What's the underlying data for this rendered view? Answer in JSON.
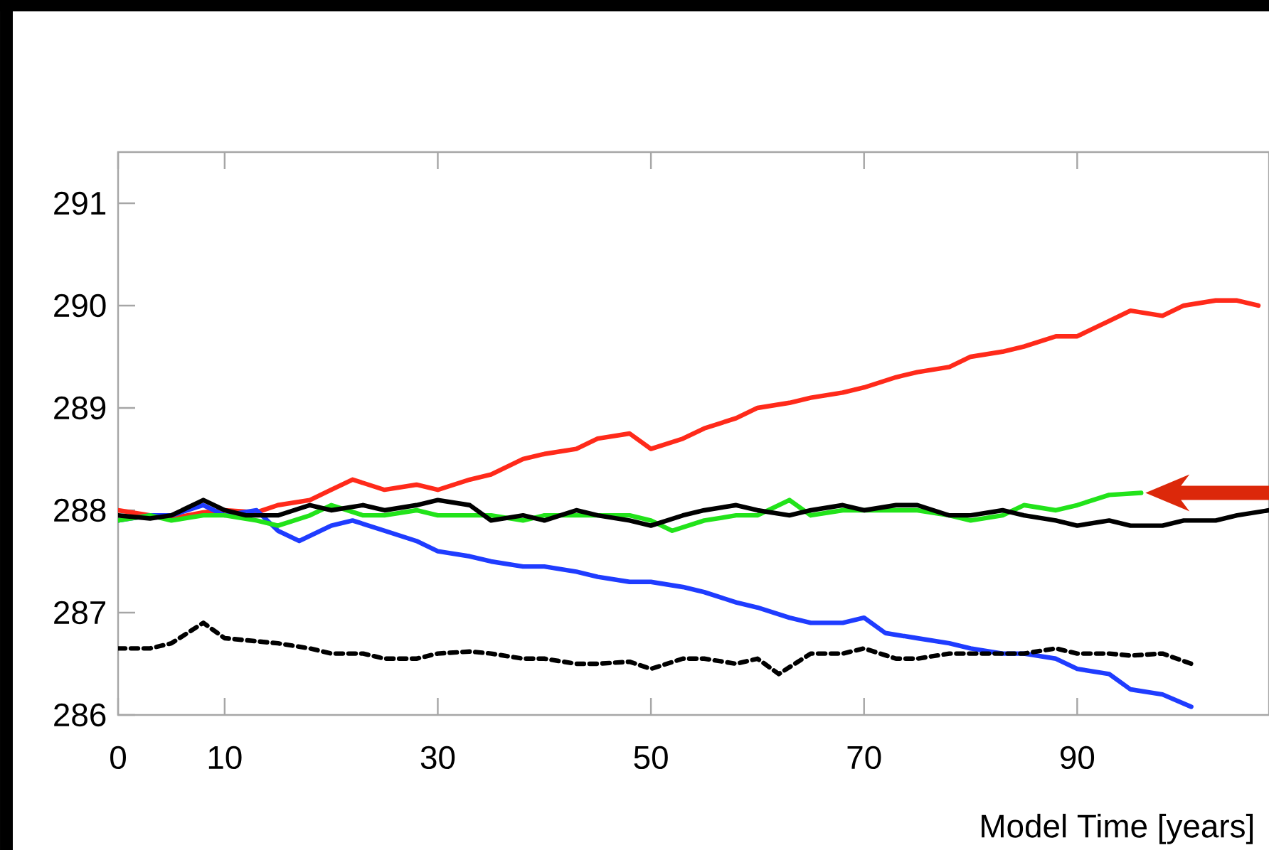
{
  "chart_data": {
    "type": "line",
    "xlabel": "Model Time [years]",
    "xlim": [
      0,
      108
    ],
    "xticks": [
      0,
      10,
      30,
      50,
      70,
      90
    ],
    "ylim": [
      286,
      291.5
    ],
    "yticks": [
      286,
      287,
      288,
      289,
      290,
      291
    ],
    "marker": "none",
    "series": [
      {
        "color": "#ff2a1a",
        "line_style": "solid",
        "x": [
          0,
          3,
          5,
          8,
          10,
          13,
          15,
          18,
          20,
          22,
          25,
          28,
          30,
          33,
          35,
          38,
          40,
          43,
          45,
          48,
          50,
          53,
          55,
          58,
          60,
          63,
          65,
          68,
          70,
          73,
          75,
          78,
          80,
          83,
          85,
          88,
          90,
          93,
          95,
          98,
          100,
          103,
          105,
          107
        ],
        "values": [
          288.0,
          287.95,
          287.92,
          287.98,
          288.0,
          287.98,
          288.05,
          288.1,
          288.2,
          288.3,
          288.2,
          288.25,
          288.2,
          288.3,
          288.35,
          288.5,
          288.55,
          288.6,
          288.7,
          288.75,
          288.6,
          288.7,
          288.8,
          288.9,
          289.0,
          289.05,
          289.1,
          289.15,
          289.2,
          289.3,
          289.35,
          289.4,
          289.5,
          289.55,
          289.6,
          289.7,
          289.7,
          289.85,
          289.95,
          289.9,
          290.0,
          290.05,
          290.05,
          290.0
        ]
      },
      {
        "color": "#1f3cff",
        "line_style": "solid",
        "x": [
          0,
          3,
          5,
          8,
          10,
          13,
          15,
          17,
          20,
          22,
          25,
          28,
          30,
          33,
          35,
          38,
          40,
          43,
          45,
          48,
          50,
          53,
          55,
          58,
          60,
          63,
          65,
          68,
          70,
          72,
          75,
          78,
          80,
          83,
          85,
          88,
          90,
          93,
          95,
          98,
          100.7
        ],
        "values": [
          287.9,
          287.95,
          287.95,
          288.05,
          287.95,
          288.0,
          287.8,
          287.7,
          287.85,
          287.9,
          287.8,
          287.7,
          287.6,
          287.55,
          287.5,
          287.45,
          287.45,
          287.4,
          287.35,
          287.3,
          287.3,
          287.25,
          287.2,
          287.1,
          287.05,
          286.95,
          286.9,
          286.9,
          286.95,
          286.8,
          286.75,
          286.7,
          286.65,
          286.6,
          286.6,
          286.55,
          286.45,
          286.4,
          286.25,
          286.2,
          286.08
        ]
      },
      {
        "color": "#22e31a",
        "line_style": "solid",
        "x": [
          0,
          3,
          5,
          8,
          10,
          13,
          15,
          18,
          20,
          23,
          25,
          28,
          30,
          33,
          35,
          38,
          40,
          43,
          45,
          48,
          50,
          52,
          55,
          58,
          60,
          63,
          65,
          68,
          70,
          73,
          75,
          78,
          80,
          83,
          85,
          88,
          90,
          93,
          96
        ],
        "values": [
          287.9,
          287.95,
          287.9,
          287.95,
          287.95,
          287.9,
          287.85,
          287.95,
          288.05,
          287.95,
          287.95,
          288.0,
          287.95,
          287.95,
          287.95,
          287.9,
          287.95,
          287.95,
          287.95,
          287.95,
          287.9,
          287.8,
          287.9,
          287.95,
          287.95,
          288.1,
          287.95,
          288.0,
          288.0,
          288.0,
          288.0,
          287.95,
          287.9,
          287.95,
          288.05,
          288.0,
          288.05,
          288.15,
          288.17
        ]
      },
      {
        "color": "#000000",
        "line_style": "solid",
        "x": [
          0,
          3,
          5,
          8,
          10,
          12,
          15,
          18,
          20,
          23,
          25,
          28,
          30,
          33,
          35,
          38,
          40,
          43,
          45,
          48,
          50,
          53,
          55,
          58,
          60,
          63,
          65,
          68,
          70,
          73,
          75,
          78,
          80,
          83,
          85,
          88,
          90,
          93,
          95,
          98,
          100,
          103,
          105,
          108
        ],
        "values": [
          287.95,
          287.92,
          287.95,
          288.1,
          288.0,
          287.95,
          287.95,
          288.05,
          288.0,
          288.05,
          288.0,
          288.05,
          288.1,
          288.05,
          287.9,
          287.95,
          287.9,
          288.0,
          287.95,
          287.9,
          287.85,
          287.95,
          288.0,
          288.05,
          288.0,
          287.95,
          288.0,
          288.05,
          288.0,
          288.05,
          288.05,
          287.95,
          287.95,
          288.0,
          287.95,
          287.9,
          287.85,
          287.9,
          287.85,
          287.85,
          287.9,
          287.9,
          287.95,
          288.0
        ]
      },
      {
        "color": "#000000",
        "line_style": "dashed",
        "x": [
          0,
          3,
          5,
          8,
          10,
          13,
          15,
          18,
          20,
          23,
          25,
          28,
          30,
          33,
          35,
          38,
          40,
          43,
          45,
          48,
          50,
          53,
          55,
          58,
          60,
          62,
          65,
          68,
          70,
          73,
          75,
          78,
          80,
          83,
          85,
          88,
          90,
          93,
          95,
          98,
          100.7
        ],
        "values": [
          286.65,
          286.65,
          286.7,
          286.9,
          286.75,
          286.72,
          286.7,
          286.65,
          286.6,
          286.6,
          286.55,
          286.55,
          286.6,
          286.62,
          286.6,
          286.55,
          286.55,
          286.5,
          286.5,
          286.52,
          286.45,
          286.55,
          286.55,
          286.5,
          286.55,
          286.4,
          286.6,
          286.6,
          286.65,
          286.55,
          286.55,
          286.6,
          286.6,
          286.6,
          286.6,
          286.65,
          286.6,
          286.6,
          286.58,
          286.6,
          286.5
        ]
      }
    ]
  }
}
